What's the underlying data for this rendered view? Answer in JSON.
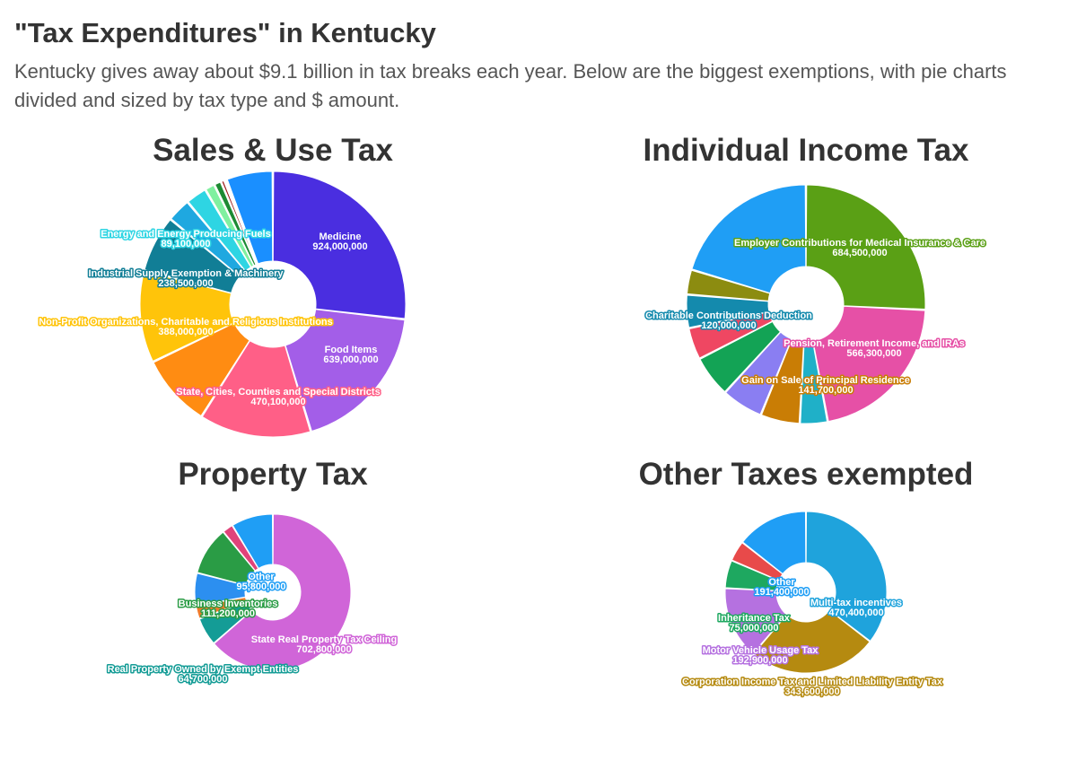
{
  "page": {
    "title": "\"Tax Expenditures\" in Kentucky",
    "subtitle": "Kentucky gives away about $9.1 billion in tax breaks each year. Below are the biggest exemptions, with pie charts divided and sized by tax type and $ amount."
  },
  "chart_data": [
    {
      "type": "pie",
      "title": "Sales & Use Tax",
      "slices": [
        {
          "label": "Medicine",
          "value": 924000000,
          "value_text": "924,000,000",
          "color": "#4a2ee0"
        },
        {
          "label": "Food Items",
          "value": 639000000,
          "value_text": "639,000,000",
          "color": "#a35ee8"
        },
        {
          "label": "State, Cities, Counties and Special Districts",
          "value": 470100000,
          "value_text": "470,100,000",
          "color": "#ff5f87"
        },
        {
          "label": "",
          "value": 305000000,
          "color": "#ff8c12"
        },
        {
          "label": "Non-Profit Organizations, Charitable and Religious Institutions",
          "value": 388000000,
          "value_text": "388,000,000",
          "color": "#ffc40a"
        },
        {
          "label": "Industrial Supply Exemption & Machinery",
          "value": 238500000,
          "value_text": "238,500,000",
          "color": "#117e96"
        },
        {
          "label": "",
          "value": 100000000,
          "color": "#1fa8e0"
        },
        {
          "label": "Energy and Energy Producing Fuels",
          "value": 89100000,
          "value_text": "89,100,000",
          "color": "#2ed5e3"
        },
        {
          "label": "",
          "value": 42000000,
          "color": "#80f0a0"
        },
        {
          "label": "",
          "value": 30000000,
          "color": "#1d8a33"
        },
        {
          "label": "",
          "value": 15000000,
          "color": "#9a1818"
        },
        {
          "label": "",
          "value": 10000000,
          "color": "#4a1212"
        },
        {
          "label": "",
          "value": 195000000,
          "color": "#1a8fff"
        }
      ]
    },
    {
      "type": "pie",
      "title": "Individual Income Tax",
      "slices": [
        {
          "label": "Employer Contributions for Medical Insurance & Care",
          "value": 684500000,
          "value_text": "684,500,000",
          "color": "#5aa015"
        },
        {
          "label": "Pension, Retirement Income, and IRAs",
          "value": 566300000,
          "value_text": "566,300,000",
          "color": "#e650a6"
        },
        {
          "label": "",
          "value": 100000000,
          "color": "#1fb0c8"
        },
        {
          "label": "Gain on Sale of Principal Residence",
          "value": 141700000,
          "value_text": "141,700,000",
          "color": "#c97d05"
        },
        {
          "label": "",
          "value": 150000000,
          "color": "#8a7ef2"
        },
        {
          "label": "",
          "value": 150000000,
          "color": "#13a355"
        },
        {
          "label": "",
          "value": 115000000,
          "color": "#ef4762"
        },
        {
          "label": "Charitable Contributions Deduction",
          "value": 120000000,
          "value_text": "120,000,000",
          "color": "#148aad"
        },
        {
          "label": "",
          "value": 90000000,
          "color": "#8c8c10"
        },
        {
          "label": "",
          "value": 540000000,
          "color": "#1f9ef5"
        }
      ]
    },
    {
      "type": "pie",
      "title": "Property Tax",
      "slices": [
        {
          "label": "State Real Property Tax Ceiling",
          "value": 702800000,
          "value_text": "702,800,000",
          "color": "#d065d8"
        },
        {
          "label": "Real Property Owned by Exempt Entities",
          "value": 64700000,
          "value_text": "64,700,000",
          "color": "#149c96"
        },
        {
          "label": "",
          "value": 30000000,
          "color": "#f07a2a"
        },
        {
          "label": "",
          "value": 75000000,
          "color": "#2c8ff0"
        },
        {
          "label": "Business Inventories",
          "value": 111200000,
          "value_text": "111,200,000",
          "color": "#2a9c45"
        },
        {
          "label": "",
          "value": 25000000,
          "color": "#e0437a"
        },
        {
          "label": "Other",
          "value": 95800000,
          "value_text": "95,800,000",
          "color": "#1f9ef5"
        }
      ]
    },
    {
      "type": "pie",
      "title": "Other Taxes exempted",
      "slices": [
        {
          "label": "Multi-tax incentives",
          "value": 470400000,
          "value_text": "470,400,000",
          "color": "#1fa3dc"
        },
        {
          "label": "Corporation Income Tax and Limited Liability Entity Tax",
          "value": 343600000,
          "value_text": "343,600,000",
          "color": "#b58a10"
        },
        {
          "label": "Motor Vehicle Usage Tax",
          "value": 192900000,
          "value_text": "192,900,000",
          "color": "#b571e0"
        },
        {
          "label": "Inheritance Tax",
          "value": 75000000,
          "value_text": "75,000,000",
          "color": "#1ea860"
        },
        {
          "label": "",
          "value": 55000000,
          "color": "#e84a4a"
        },
        {
          "label": "Other",
          "value": 191400000,
          "value_text": "191,400,000",
          "color": "#1f9ef5"
        }
      ]
    }
  ]
}
